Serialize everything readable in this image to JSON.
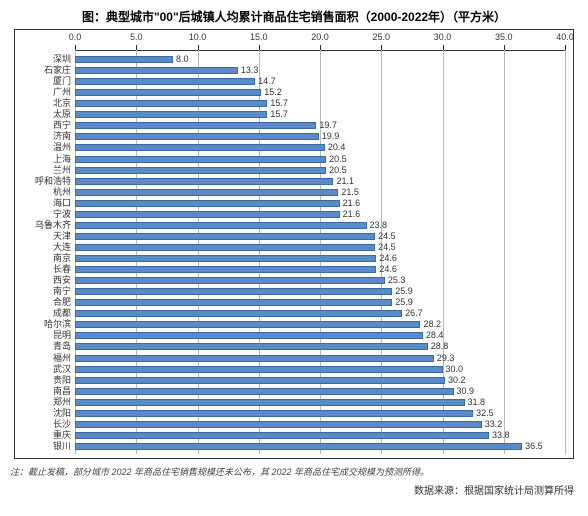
{
  "title": "图：典型城市\"00\"后城镇人均累计商品住宅销售面积（2000-2022年）（平方米）",
  "footnote": "注：截止发稿，部分城市 2022 年商品住宅销售规模还未公布，其 2022 年商品住宅成交规模为预测所得。",
  "source": "数据来源：根据国家统计局测算所得",
  "chart": {
    "type": "bar-horizontal",
    "xlim": [
      0,
      40
    ],
    "xtick_step": 5,
    "xticks": [
      "0.0",
      "5.0",
      "10.0",
      "15.0",
      "20.0",
      "25.0",
      "30.0",
      "35.0",
      "40.0"
    ],
    "bar_color": "#5b8bc5",
    "bar_border": "#3a6aa4",
    "grid_color": "#b8b8b8",
    "background_color": "#ffffff",
    "label_fontsize": 9,
    "title_fontsize": 12,
    "data": [
      {
        "city": "深圳",
        "value": 8.0
      },
      {
        "city": "石家庄",
        "value": 13.3
      },
      {
        "city": "厦门",
        "value": 14.7
      },
      {
        "city": "广州",
        "value": 15.2
      },
      {
        "city": "北京",
        "value": 15.7
      },
      {
        "city": "太原",
        "value": 15.7
      },
      {
        "city": "西宁",
        "value": 19.7
      },
      {
        "city": "济南",
        "value": 19.9
      },
      {
        "city": "温州",
        "value": 20.4
      },
      {
        "city": "上海",
        "value": 20.5
      },
      {
        "city": "兰州",
        "value": 20.5
      },
      {
        "city": "呼和浩特",
        "value": 21.1
      },
      {
        "city": "杭州",
        "value": 21.5
      },
      {
        "city": "海口",
        "value": 21.6
      },
      {
        "city": "宁波",
        "value": 21.6
      },
      {
        "city": "乌鲁木齐",
        "value": 23.8
      },
      {
        "city": "天津",
        "value": 24.5
      },
      {
        "city": "大连",
        "value": 24.5
      },
      {
        "city": "南京",
        "value": 24.6
      },
      {
        "city": "长春",
        "value": 24.6
      },
      {
        "city": "西安",
        "value": 25.3
      },
      {
        "city": "南宁",
        "value": 25.9
      },
      {
        "city": "合肥",
        "value": 25.9
      },
      {
        "city": "成都",
        "value": 26.7
      },
      {
        "city": "哈尔滨",
        "value": 28.2
      },
      {
        "city": "昆明",
        "value": 28.4
      },
      {
        "city": "青岛",
        "value": 28.8
      },
      {
        "city": "福州",
        "value": 29.3
      },
      {
        "city": "武汉",
        "value": 30.0
      },
      {
        "city": "贵阳",
        "value": 30.2
      },
      {
        "city": "南昌",
        "value": 30.9
      },
      {
        "city": "郑州",
        "value": 31.8
      },
      {
        "city": "沈阳",
        "value": 32.5
      },
      {
        "city": "长沙",
        "value": 33.2
      },
      {
        "city": "重庆",
        "value": 33.8
      },
      {
        "city": "银川",
        "value": 36.5
      }
    ]
  }
}
